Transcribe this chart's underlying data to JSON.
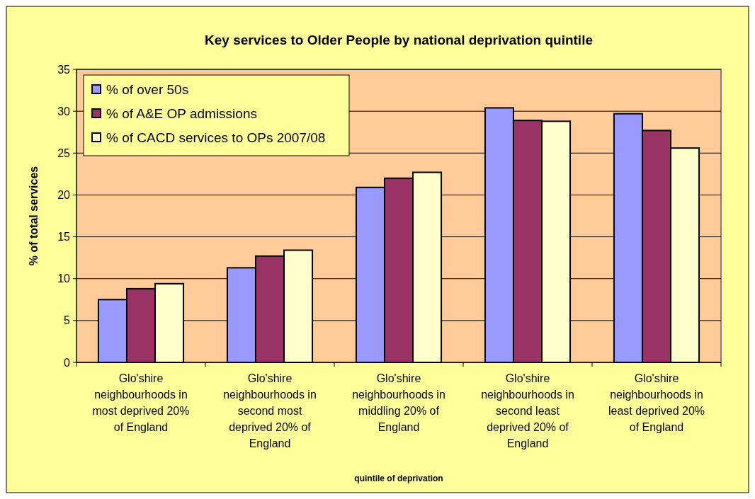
{
  "chart_data": {
    "type": "bar",
    "title": "Key services to Older People by national deprivation quintile",
    "xlabel": "quintile of deprivation",
    "ylabel": "% of total services",
    "categories": [
      "Glo'shire neighbourhoods in most deprived 20% of England",
      "Glo'shire neighbourhoods in second most deprived 20% of England",
      "Glo'shire neighbourhoods in middling 20% of England",
      "Glo'shire neighbourhoods in second least deprived 20% of England",
      "Glo'shire neighbourhoods in least deprived 20% of England"
    ],
    "series": [
      {
        "name": "% of over 50s",
        "color": "#9999ff",
        "values": [
          7.5,
          11.3,
          20.9,
          30.4,
          29.7
        ]
      },
      {
        "name": "% of A&E OP admissions",
        "color": "#993366",
        "values": [
          8.8,
          12.7,
          22.0,
          28.9,
          27.7
        ]
      },
      {
        "name": "% of CACD services to OPs 2007/08",
        "color": "#ffffcc",
        "values": [
          9.4,
          13.4,
          22.7,
          28.8,
          25.6
        ]
      }
    ],
    "ylim": [
      0,
      35
    ],
    "yticks": [
      0,
      5,
      10,
      15,
      20,
      25,
      30,
      35
    ],
    "grid": "y",
    "legend": "top left"
  }
}
